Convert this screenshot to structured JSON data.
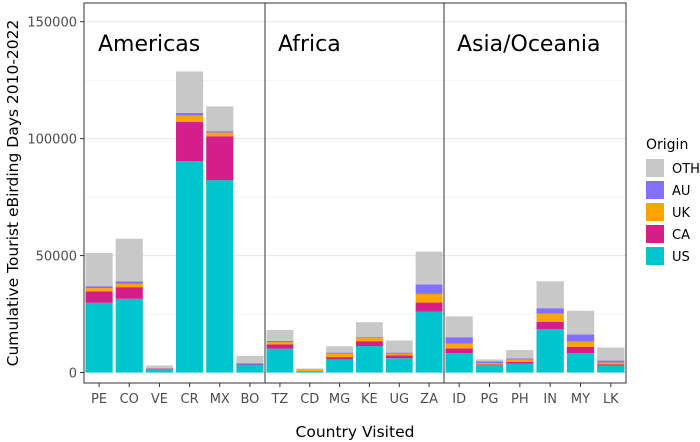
{
  "chart_data": {
    "type": "bar",
    "stacked": true,
    "xlabel": "Country Visited",
    "ylabel": "Cumulative Tourist eBirding Days 2010-2022",
    "ylim": [
      0,
      155000
    ],
    "yticks": [
      0,
      50000,
      100000,
      150000
    ],
    "ytick_labels": [
      "0",
      "50000",
      "100000",
      "150000"
    ],
    "grid": true,
    "facets": [
      "Americas",
      "Africa",
      "Asia/Oceania"
    ],
    "categories": [
      {
        "code": "PE",
        "facet": 0
      },
      {
        "code": "CO",
        "facet": 0
      },
      {
        "code": "VE",
        "facet": 0
      },
      {
        "code": "CR",
        "facet": 0
      },
      {
        "code": "MX",
        "facet": 0
      },
      {
        "code": "BO",
        "facet": 0
      },
      {
        "code": "TZ",
        "facet": 1
      },
      {
        "code": "CD",
        "facet": 1
      },
      {
        "code": "MG",
        "facet": 1
      },
      {
        "code": "KE",
        "facet": 1
      },
      {
        "code": "UG",
        "facet": 1
      },
      {
        "code": "ZA",
        "facet": 1
      },
      {
        "code": "ID",
        "facet": 2
      },
      {
        "code": "PG",
        "facet": 2
      },
      {
        "code": "PH",
        "facet": 2
      },
      {
        "code": "IN",
        "facet": 2
      },
      {
        "code": "MY",
        "facet": 2
      },
      {
        "code": "LK",
        "facet": 2
      }
    ],
    "series": [
      {
        "name": "US",
        "color": "#00C5CD",
        "values": [
          29800,
          31500,
          1600,
          90300,
          82200,
          3400,
          10200,
          500,
          5600,
          11300,
          6100,
          26000,
          8300,
          3100,
          3800,
          18600,
          8300,
          3000
        ]
      },
      {
        "name": "CA",
        "color": "#D41F8A",
        "values": [
          4900,
          5000,
          200,
          16800,
          18800,
          400,
          1800,
          100,
          1000,
          2100,
          1200,
          3900,
          2000,
          300,
          700,
          3000,
          2700,
          500
        ]
      },
      {
        "name": "UK",
        "color": "#FFA500",
        "values": [
          1400,
          1400,
          100,
          2800,
          1600,
          200,
          1000,
          700,
          1500,
          1300,
          700,
          3700,
          2000,
          600,
          1000,
          3600,
          2200,
          800
        ]
      },
      {
        "name": "AU",
        "color": "#8470FF",
        "values": [
          800,
          1100,
          100,
          1100,
          600,
          100,
          500,
          100,
          400,
          400,
          500,
          4100,
          2800,
          700,
          500,
          2300,
          3100,
          800
        ]
      },
      {
        "name": "OTH",
        "color": "#C8C8C8",
        "values": [
          14200,
          18200,
          1000,
          17700,
          10600,
          3000,
          4700,
          300,
          2700,
          6400,
          5200,
          14000,
          8900,
          900,
          3600,
          11500,
          10100,
          5600
        ]
      }
    ],
    "legend": {
      "title": "Origin",
      "position": "right",
      "items": [
        {
          "label": "OTH",
          "color": "#C8C8C8"
        },
        {
          "label": "AU",
          "color": "#8470FF"
        },
        {
          "label": "UK",
          "color": "#FFA500"
        },
        {
          "label": "CA",
          "color": "#D41F8A"
        },
        {
          "label": "US",
          "color": "#00C5CD"
        }
      ]
    }
  }
}
